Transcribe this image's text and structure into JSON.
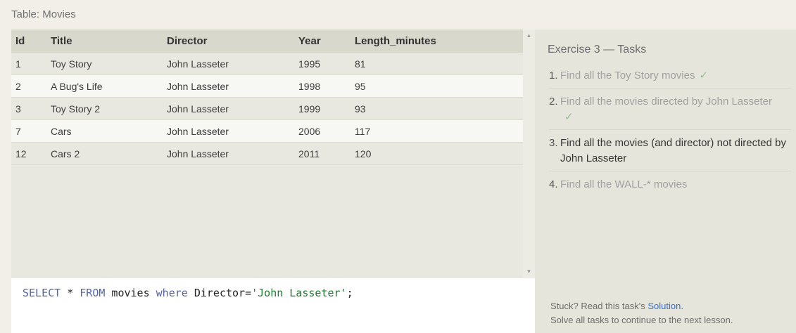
{
  "table_title": "Table: Movies",
  "columns": [
    "Id",
    "Title",
    "Director",
    "Year",
    "Length_minutes"
  ],
  "rows": [
    [
      "1",
      "Toy Story",
      "John Lasseter",
      "1995",
      "81"
    ],
    [
      "2",
      "A Bug's Life",
      "John Lasseter",
      "1998",
      "95"
    ],
    [
      "3",
      "Toy Story 2",
      "John Lasseter",
      "1999",
      "93"
    ],
    [
      "7",
      "Cars",
      "John Lasseter",
      "2006",
      "117"
    ],
    [
      "12",
      "Cars 2",
      "John Lasseter",
      "2011",
      "120"
    ]
  ],
  "query": {
    "kw_select": "SELECT",
    "star": " * ",
    "kw_from": "FROM",
    "table": " movies ",
    "kw_where": "where",
    "cond": " Director=",
    "value": "'John Lasseter'",
    "end": ";"
  },
  "exercise": {
    "title": "Exercise 3 — Tasks",
    "tasks": [
      {
        "num": "1.",
        "text": "Find all the Toy Story movies",
        "check": "✓"
      },
      {
        "num": "2.",
        "text": "Find all the movies directed by John Lasseter",
        "check": "✓"
      },
      {
        "num": "3.",
        "text": "Find all the movies (and director) not directed by John Lasseter",
        "check": ""
      },
      {
        "num": "4.",
        "text": "Find all the WALL-* movies",
        "check": ""
      }
    ]
  },
  "footer": {
    "stuck_prefix": "Stuck? Read this task's ",
    "solution_link": "Solution",
    "stuck_suffix": ".",
    "continue_text": "Solve all tasks to continue to the next lesson."
  },
  "colors": {
    "keyword": "#5565a0",
    "string": "#1f7a2f",
    "link": "#3a6fcc",
    "check": "#8fbf8f"
  }
}
